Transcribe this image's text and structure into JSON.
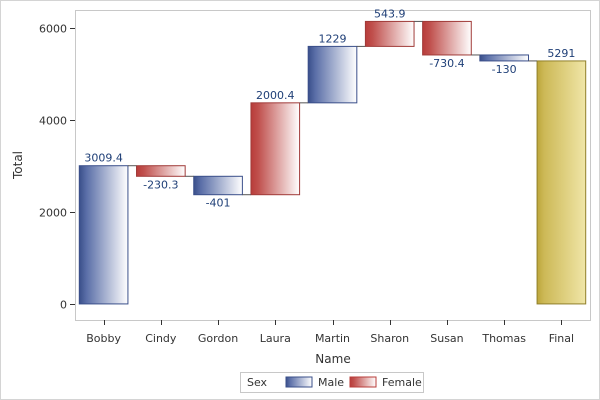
{
  "chart_data": {
    "type": "waterfall",
    "xlabel": "Name",
    "ylabel": "Total",
    "categories": [
      "Bobby",
      "Cindy",
      "Gordon",
      "Laura",
      "Martin",
      "Sharon",
      "Susan",
      "Thomas",
      "Final"
    ],
    "values": [
      3009.4,
      -230.3,
      -401,
      2000.4,
      1229,
      543.9,
      -730.4,
      -130,
      5291
    ],
    "labels": [
      "3009.4",
      "-230.3",
      "-401",
      "2000.4",
      "1229",
      "543.9",
      "-730.4",
      "-130",
      "5291"
    ],
    "groups": [
      "Male",
      "Female",
      "Male",
      "Female",
      "Male",
      "Female",
      "Female",
      "Male",
      "Total"
    ],
    "ylim": [
      -350,
      6400
    ],
    "yticks": [
      0,
      2000,
      4000,
      6000
    ],
    "grid": false,
    "legend": {
      "title": "Sex",
      "position": "bottom",
      "entries": [
        {
          "label": "Male",
          "group": "Male"
        },
        {
          "label": "Female",
          "group": "Female"
        }
      ]
    }
  },
  "colors": {
    "Male": "#5b6fa8",
    "Female": "#c0504d",
    "Total": "#c9b44a",
    "label": "#1f3f77",
    "axis": "#333333",
    "frame": "#c8c8c8",
    "connector": "#555555"
  }
}
